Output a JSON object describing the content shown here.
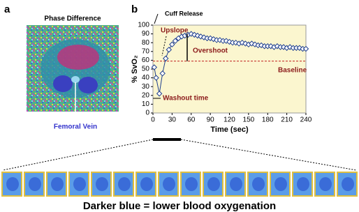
{
  "panels": {
    "a": "a",
    "b": "b",
    "image_title": "Phase Difference",
    "vein_label": "Femoral Vein",
    "caption": "Darker blue = lower blood oxygenation"
  },
  "chart_data": {
    "type": "line",
    "x_label": "Time (sec)",
    "y_label": "% SvO₂",
    "x": [
      2,
      5,
      10,
      15,
      20,
      25,
      30,
      35,
      40,
      45,
      50,
      55,
      60,
      65,
      70,
      75,
      80,
      85,
      90,
      95,
      100,
      105,
      110,
      115,
      120,
      125,
      130,
      135,
      140,
      145,
      150,
      155,
      160,
      165,
      170,
      175,
      180,
      185,
      190,
      195,
      200,
      205,
      210,
      215,
      220,
      225,
      230,
      235,
      240
    ],
    "series": [
      {
        "color": "#1f3f8f",
        "values": [
          52,
          40,
          22,
          45,
          62,
          72,
          78,
          82,
          85,
          87,
          88,
          89,
          90,
          89,
          88,
          87,
          86,
          85,
          85,
          84,
          83,
          83,
          82,
          82,
          81,
          80,
          80,
          79,
          80,
          79,
          78,
          79,
          78,
          77,
          77,
          76,
          76,
          76,
          75,
          76,
          75,
          75,
          74,
          75,
          74,
          74,
          74,
          73,
          73
        ]
      }
    ],
    "xlim": [
      0,
      240
    ],
    "xticks": [
      0,
      30,
      60,
      90,
      120,
      150,
      180,
      210,
      240
    ],
    "ylim": [
      0,
      100
    ],
    "yticks": [
      0,
      10,
      20,
      30,
      40,
      50,
      60,
      70,
      80,
      90,
      100
    ],
    "baseline": 59,
    "background": "#fbf6cf",
    "annotations": [
      "Cuff Release",
      "Upslope",
      "Overshoot",
      "Baseline",
      "Washout time"
    ]
  }
}
